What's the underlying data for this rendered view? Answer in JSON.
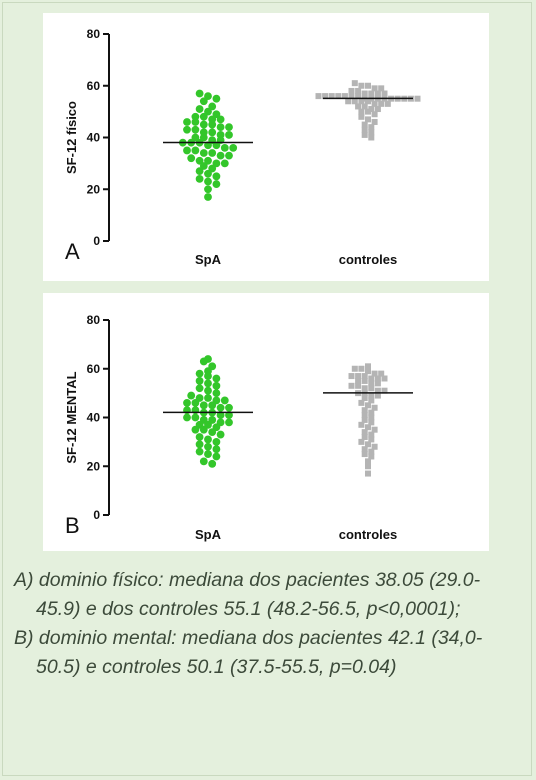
{
  "panels": [
    {
      "letter": "A",
      "ylabel": "SF-12 físico",
      "yticks": [
        "0",
        "20",
        "40",
        "60",
        "80"
      ]
    },
    {
      "letter": "B",
      "ylabel": "SF-12 MENTAL",
      "yticks": [
        "0",
        "20",
        "40",
        "60",
        "80"
      ]
    }
  ],
  "caption": {
    "a": "A) dominio físico: mediana dos pacientes 38.05 (29.0-45.9) e  dos controles 55.1 (48.2-56.5, p<0,0001);",
    "b": "B) dominio mental: mediana dos pacientes 42.1 (34,0-50.5) e controles 50.1 (37.5-55.5, p=0.04)"
  },
  "colors": {
    "spa": "#33c62a",
    "controles": "#b4b4b4",
    "median": "#111111"
  },
  "chart_data": [
    {
      "type": "scatter",
      "subtype": "dot-plot",
      "ylabel": "SF-12 físico",
      "ylim": [
        0,
        80
      ],
      "yticks": [
        0,
        20,
        40,
        60,
        80
      ],
      "categories": [
        "SpA",
        "controles"
      ],
      "series": [
        {
          "name": "SpA",
          "median": 38.05,
          "values": [
            57,
            56,
            55,
            54,
            52,
            51,
            50,
            49,
            48,
            48,
            47,
            47,
            46,
            46,
            45,
            45,
            44,
            44,
            43,
            43,
            42,
            42,
            41,
            41,
            40,
            40,
            39,
            39,
            38,
            38,
            38,
            37,
            37,
            36,
            36,
            35,
            35,
            34,
            34,
            33,
            33,
            32,
            31,
            31,
            30,
            30,
            29,
            28,
            27,
            26,
            25,
            24,
            23,
            22,
            20,
            17
          ]
        },
        {
          "name": "controles",
          "median": 55.1,
          "values": [
            61,
            60,
            60,
            59,
            59,
            58,
            58,
            57,
            57,
            57,
            57,
            56,
            56,
            56,
            56,
            56,
            56,
            56,
            55,
            55,
            55,
            55,
            55,
            55,
            55,
            55,
            55,
            54,
            54,
            54,
            54,
            53,
            53,
            53,
            52,
            52,
            51,
            51,
            50,
            50,
            49,
            48,
            47,
            46,
            45,
            44,
            43,
            42,
            41,
            40
          ]
        }
      ]
    },
    {
      "type": "scatter",
      "subtype": "dot-plot",
      "ylabel": "SF-12 MENTAL",
      "ylim": [
        0,
        80
      ],
      "yticks": [
        0,
        20,
        40,
        60,
        80
      ],
      "categories": [
        "SpA",
        "controles"
      ],
      "series": [
        {
          "name": "SpA",
          "median": 42.1,
          "values": [
            64,
            63,
            61,
            59,
            58,
            57,
            56,
            55,
            54,
            53,
            52,
            51,
            50,
            49,
            48,
            48,
            47,
            47,
            46,
            46,
            45,
            45,
            44,
            44,
            43,
            43,
            42,
            42,
            41,
            41,
            40,
            40,
            39,
            39,
            38,
            38,
            37,
            37,
            36,
            35,
            35,
            34,
            33,
            32,
            31,
            30,
            29,
            28,
            27,
            26,
            25,
            24,
            22,
            21
          ]
        },
        {
          "name": "controles",
          "median": 50.1,
          "values": [
            61,
            60,
            60,
            59,
            58,
            58,
            57,
            57,
            57,
            56,
            56,
            56,
            55,
            55,
            54,
            54,
            53,
            53,
            52,
            52,
            51,
            51,
            50,
            50,
            49,
            49,
            48,
            47,
            46,
            45,
            44,
            43,
            42,
            41,
            40,
            39,
            38,
            37,
            36,
            35,
            34,
            33,
            32,
            31,
            30,
            29,
            28,
            27,
            26,
            25,
            24,
            22,
            20,
            17
          ]
        }
      ]
    }
  ]
}
